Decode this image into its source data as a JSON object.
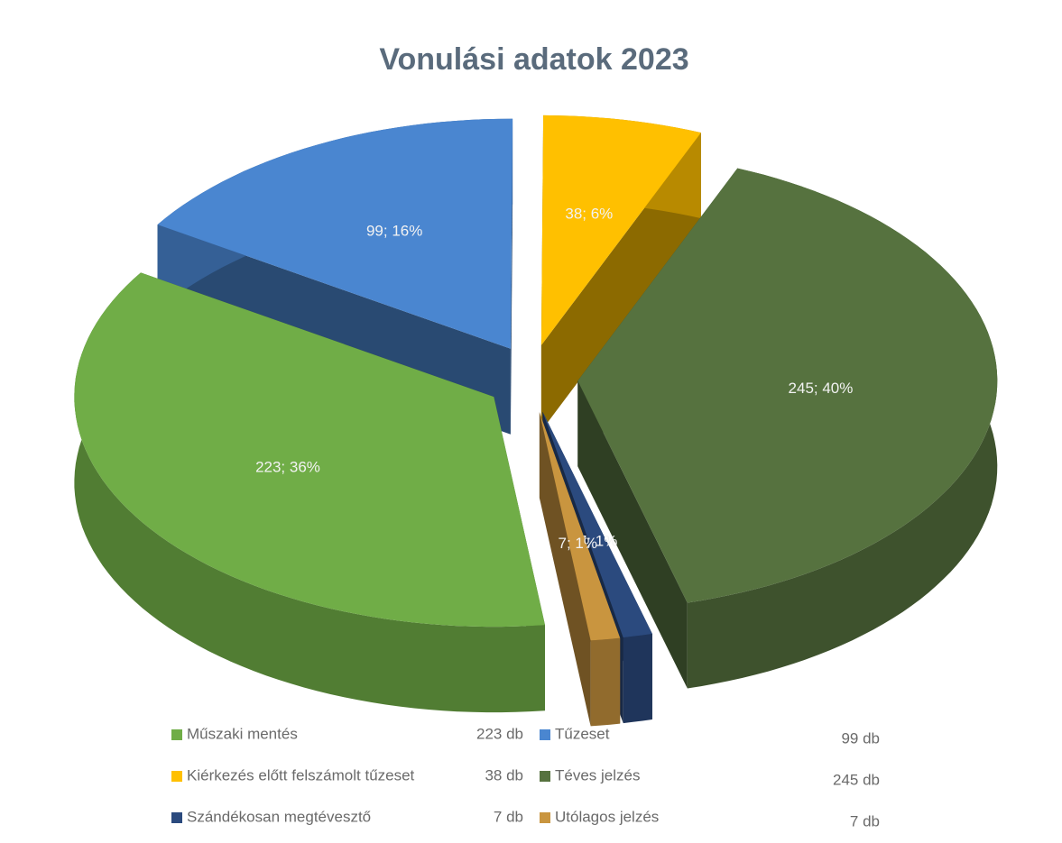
{
  "chart_data": {
    "type": "pie",
    "title": "Vonulási adatok 2023",
    "categories": [
      "Műszaki mentés",
      "Tűzeset",
      "Kiérkezés előtt felszámolt tűzeset",
      "Téves jelzés",
      "Szándékosan megtévesztő",
      "Utólagos jelzés"
    ],
    "values": [
      223,
      99,
      38,
      245,
      7,
      7
    ],
    "value_labels": [
      "223; 36%",
      "99; 16%",
      "38; 6%",
      "245; 40%",
      "7; 1%",
      "7; 1%"
    ],
    "legend_values": [
      "223 db",
      "99 db",
      "38 db",
      "245 db",
      "7 db",
      "7 db"
    ],
    "colors": [
      "#70ad47",
      "#4a86d0",
      "#ffc000",
      "#56723f",
      "#2b4a7e",
      "#c9953f"
    ],
    "legend": "bottom"
  }
}
